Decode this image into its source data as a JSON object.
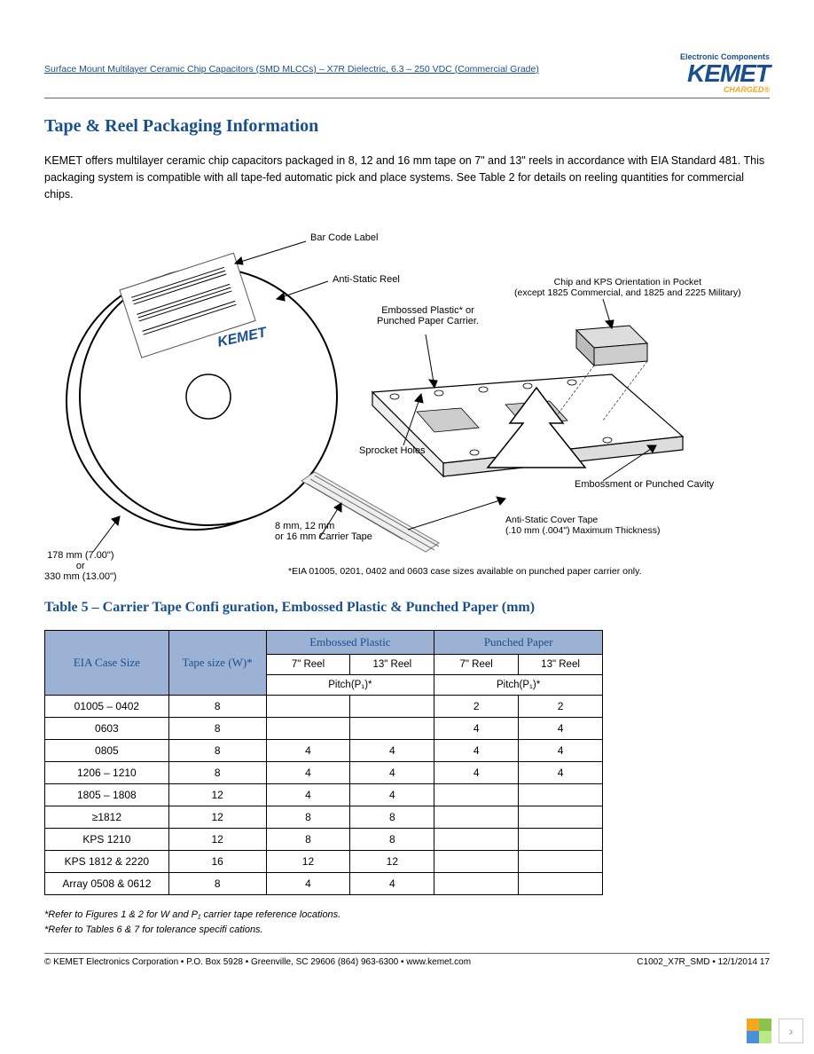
{
  "header": {
    "doc_title": "Surface Mount Multilayer Ceramic Chip Capacitors (SMD MLCCs) – X7R Dielectric, 6.3 – 250 VDC (Commercial Grade)",
    "logo_tagline": "Electronic Components",
    "logo_text": "KEMET",
    "logo_sub": "CHARGED®"
  },
  "section": {
    "title": "Tape & Reel Packaging Information",
    "body": "KEMET offers multilayer ceramic chip capacitors packaged in 8, 12 and 16 mm tape on 7\" and 13\" reels in accordance with EIA Standard 481. This packaging system is compatible with all tape-fed automatic pick and place systems. See Table 2 for details on reeling quantities for commercial chips."
  },
  "diagram": {
    "bar_code": "Bar Code Label",
    "anti_static_reel": "Anti-Static Reel",
    "embossed": "Embossed Plastic* or\nPunched Paper Carrier.",
    "chip_orient": "Chip and KPS Orientation in Pocket\n(except 1825 Commercial, and 1825 and 2225 Military)",
    "kemet_stamp": "KEMET",
    "sprocket": "Sprocket Holes",
    "embossment": "Embossment or Punched Cavity",
    "carrier_tape": "8 mm, 12 mm\nor 16 mm Carrier Tape",
    "cover_tape": "Anti-Static Cover Tape\n(.10 mm (.004\") Maximum Thickness)",
    "reel_dim": "178 mm (7.00\")\nor\n330 mm (13.00\")",
    "eia_note": "*EIA 01005, 0201, 0402 and 0603 case sizes available on punched paper carrier only."
  },
  "table5": {
    "title": "Table 5 – Carrier Tape Confi guration, Embossed Plastic & Punched Paper (mm)",
    "col_case": "EIA Case Size",
    "col_tape": "Tape size (W)*",
    "col_embossed": "Embossed Plastic",
    "col_punched": "Punched Paper",
    "col_7reel": "7\" Reel",
    "col_13reel": "13\" Reel",
    "col_pitch": "Pitch(P₁)*",
    "rows": [
      {
        "case": "01005 – 0402",
        "tape": "8",
        "e7": "",
        "e13": "",
        "p7": "2",
        "p13": "2"
      },
      {
        "case": "0603",
        "tape": "8",
        "e7": "",
        "e13": "",
        "p7": "4",
        "p13": "4"
      },
      {
        "case": "0805",
        "tape": "8",
        "e7": "4",
        "e13": "4",
        "p7": "4",
        "p13": "4"
      },
      {
        "case": "1206 – 1210",
        "tape": "8",
        "e7": "4",
        "e13": "4",
        "p7": "4",
        "p13": "4"
      },
      {
        "case": "1805 – 1808",
        "tape": "12",
        "e7": "4",
        "e13": "4",
        "p7": "",
        "p13": ""
      },
      {
        "case": "≥1812",
        "tape": "12",
        "e7": "8",
        "e13": "8",
        "p7": "",
        "p13": ""
      },
      {
        "case": "KPS 1210",
        "tape": "12",
        "e7": "8",
        "e13": "8",
        "p7": "",
        "p13": ""
      },
      {
        "case": "KPS 1812 & 2220",
        "tape": "16",
        "e7": "12",
        "e13": "12",
        "p7": "",
        "p13": ""
      },
      {
        "case": "Array 0508 & 0612",
        "tape": "8",
        "e7": "4",
        "e13": "4",
        "p7": "",
        "p13": ""
      }
    ],
    "footnote1": "*Refer to Figures 1 & 2 for W and P₁ carrier tape reference locations.",
    "footnote2": "*Refer to Tables 6 & 7 for tolerance specifi cations."
  },
  "footer": {
    "left": "© KEMET Electronics Corporation • P.O. Box 5928 • Greenville, SC 29606 (864) 963-6300 • www.kemet.com",
    "right": "C1002_X7R_SMD • 12/1/2014  17"
  },
  "colors": {
    "brand_blue": "#1a4f8f",
    "brand_orange": "#f5a623",
    "table_header_bg": "#9bb2d4",
    "pager_c1": "#f5a623",
    "pager_c2": "#8bc34a",
    "pager_c3": "#4a90d9",
    "pager_c4": "#b8e986"
  }
}
